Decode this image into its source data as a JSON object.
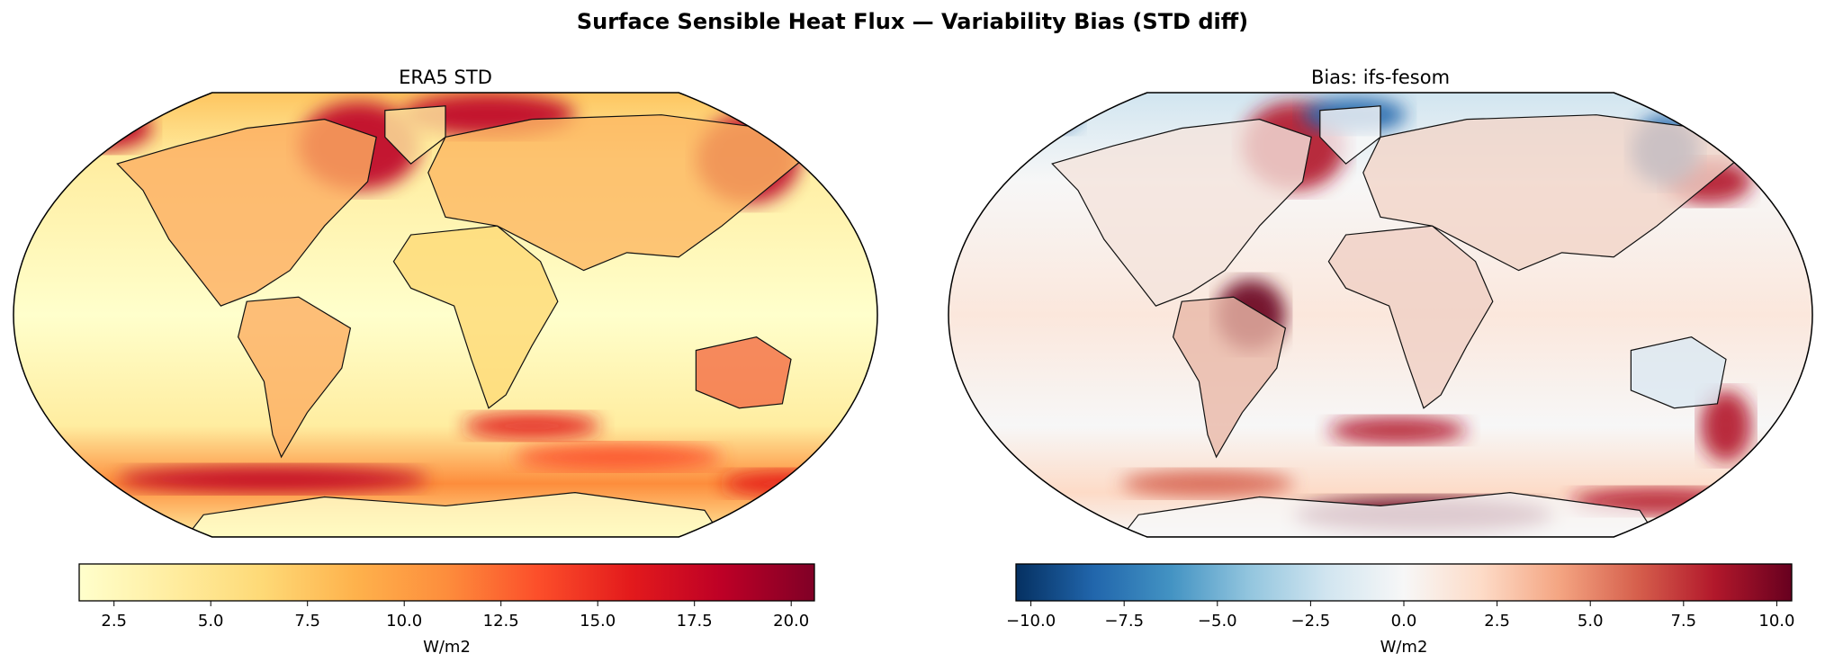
{
  "title": "Surface Sensible Heat Flux — Variability Bias (STD diff)",
  "chart_data": [
    {
      "type": "heatmap",
      "subtype": "map",
      "projection": "Robinson",
      "title": "ERA5 STD",
      "colormap": "YlOrRd",
      "colorbar": {
        "label": "W/m2",
        "range": [
          1.6,
          20.6
        ],
        "ticks": [
          2.5,
          5.0,
          7.5,
          10.0,
          12.5,
          15.0,
          17.5,
          20.0
        ],
        "tick_labels": [
          "2.5",
          "5.0",
          "7.5",
          "10.0",
          "12.5",
          "15.0",
          "17.5",
          "20.0"
        ],
        "colors": [
          "#ffffcc",
          "#ffeda0",
          "#fed976",
          "#feb24c",
          "#fd8d3c",
          "#fc4e2a",
          "#e31a1c",
          "#bd0026",
          "#800026"
        ]
      }
    },
    {
      "type": "heatmap",
      "subtype": "map",
      "projection": "Robinson",
      "title": "Bias: ifs-fesom",
      "colormap": "RdBu_r",
      "colorbar": {
        "label": "W/m2",
        "range": [
          -10.4,
          10.4
        ],
        "ticks": [
          -10.0,
          -7.5,
          -5.0,
          -2.5,
          0.0,
          2.5,
          5.0,
          7.5,
          10.0
        ],
        "tick_labels": [
          "−10.0",
          "−7.5",
          "−5.0",
          "−2.5",
          "0.0",
          "2.5",
          "5.0",
          "7.5",
          "10.0"
        ],
        "colors": [
          "#053061",
          "#2166ac",
          "#4393c3",
          "#92c5de",
          "#d1e5f0",
          "#f7f7f7",
          "#fddbc7",
          "#f4a582",
          "#d6604d",
          "#b2182b",
          "#67001f"
        ]
      }
    }
  ]
}
